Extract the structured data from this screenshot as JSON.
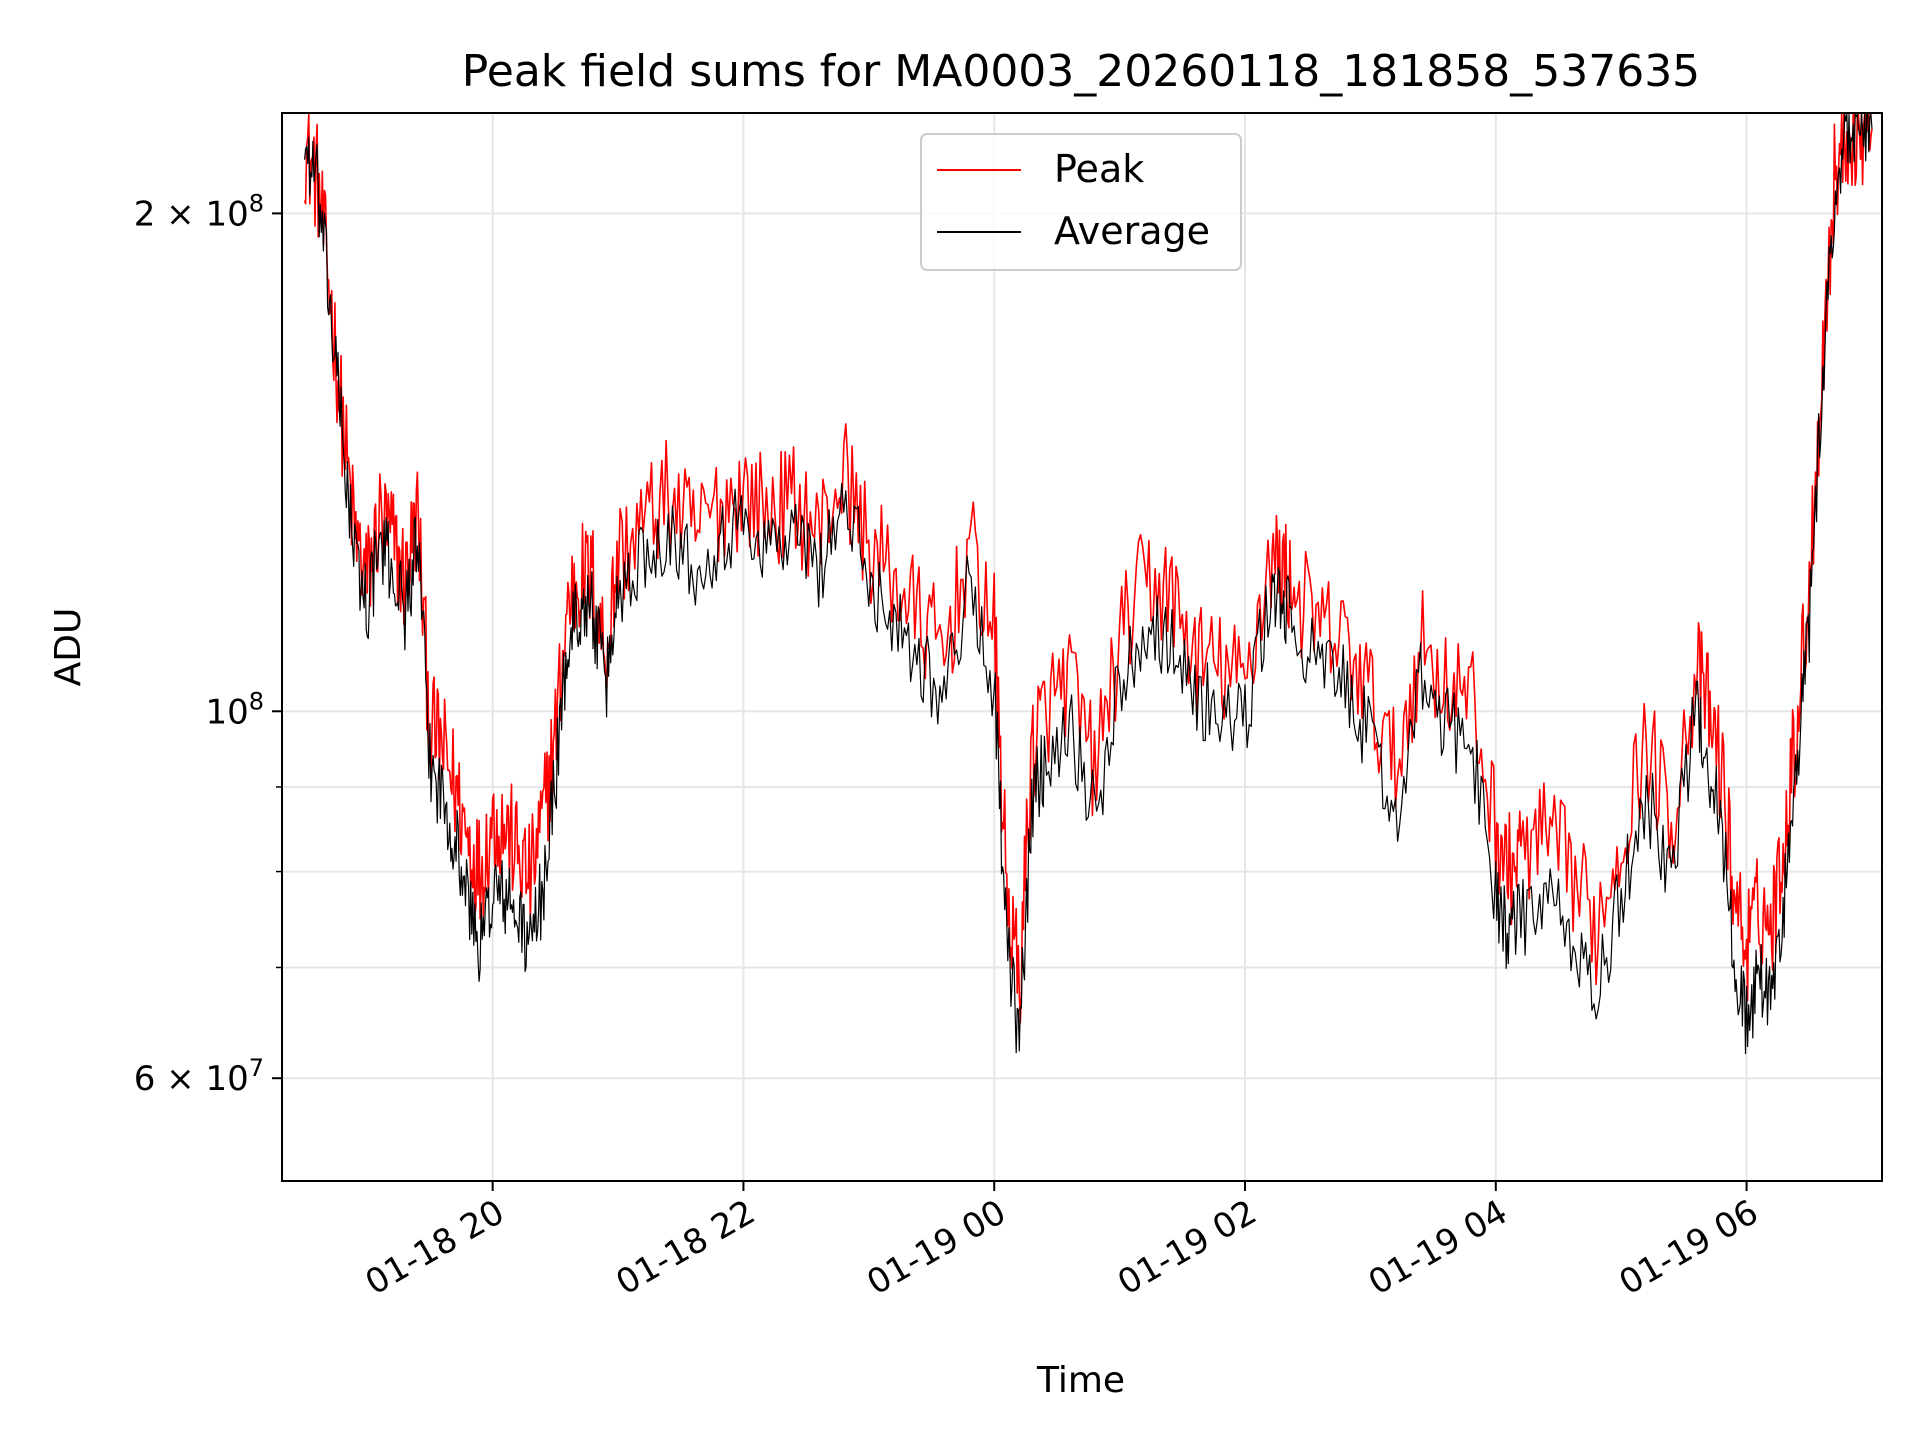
{
  "chart_data": {
    "type": "line",
    "title": "Peak field sums for MA0003_20260118_181858_537635",
    "xlabel": "Time",
    "ylabel": "ADU",
    "yscale": "log",
    "grid": true,
    "legend_position": "top-center",
    "xlim_hours": [
      18.32,
      31.08
    ],
    "ylim": [
      52000000,
      230000000
    ],
    "x_ticks": [
      {
        "hours": 20,
        "label": "01-18 20"
      },
      {
        "hours": 22,
        "label": "01-18 22"
      },
      {
        "hours": 24,
        "label": "01-19 00"
      },
      {
        "hours": 26,
        "label": "01-19 02"
      },
      {
        "hours": 28,
        "label": "01-19 04"
      },
      {
        "hours": 30,
        "label": "01-19 06"
      }
    ],
    "y_ticks_major": [
      {
        "value": 60000000,
        "label": "6 × 10⁷",
        "mantissa": "6",
        "base": "10",
        "exp": "7"
      },
      {
        "value": 100000000,
        "label": "10⁸",
        "mantissa": "",
        "base": "10",
        "exp": "8"
      },
      {
        "value": 200000000,
        "label": "2 × 10⁸",
        "mantissa": "2",
        "base": "10",
        "exp": "8"
      }
    ],
    "y_ticks_minor": [
      70000000,
      80000000,
      90000000
    ],
    "series": [
      {
        "name": "Peak",
        "color": "#ff0000",
        "x": [
          18.5,
          18.6,
          18.7,
          18.8,
          18.9,
          19.0,
          19.1,
          19.2,
          19.3,
          19.4,
          19.5,
          19.6,
          19.7,
          19.8,
          19.9,
          20.0,
          20.1,
          20.2,
          20.3,
          20.4,
          20.5,
          20.6,
          20.7,
          20.8,
          20.9,
          21.0,
          21.2,
          21.4,
          21.6,
          21.8,
          22.0,
          22.2,
          22.4,
          22.6,
          22.8,
          23.0,
          23.2,
          23.4,
          23.6,
          23.8,
          24.0,
          24.1,
          24.2,
          24.3,
          24.4,
          24.6,
          24.8,
          25.0,
          25.2,
          25.4,
          25.6,
          25.8,
          26.0,
          26.2,
          26.3,
          26.4,
          26.6,
          26.8,
          27.0,
          27.2,
          27.4,
          27.6,
          27.8,
          28.0,
          28.1,
          28.2,
          28.4,
          28.6,
          28.8,
          29.0,
          29.2,
          29.4,
          29.6,
          29.7,
          29.8,
          29.9,
          30.0,
          30.1,
          30.2,
          30.3,
          30.4,
          30.5,
          30.6,
          30.7,
          30.8,
          30.9,
          31.0
        ],
        "values": [
          220000000,
          210000000,
          180000000,
          150000000,
          128000000,
          120000000,
          131000000,
          127000000,
          120000000,
          132000000,
          98000000,
          95000000,
          90000000,
          84000000,
          80000000,
          86000000,
          85000000,
          82000000,
          79000000,
          86000000,
          97000000,
          116000000,
          121000000,
          120000000,
          108000000,
          124000000,
          130000000,
          135000000,
          128000000,
          133000000,
          136000000,
          132000000,
          134000000,
          128000000,
          140000000,
          126000000,
          120000000,
          114000000,
          108000000,
          126000000,
          112000000,
          78000000,
          68000000,
          95000000,
          100000000,
          105000000,
          92000000,
          110000000,
          120000000,
          118000000,
          108000000,
          106000000,
          104000000,
          124000000,
          122000000,
          118000000,
          112000000,
          110000000,
          102000000,
          92000000,
          110000000,
          104000000,
          102000000,
          85000000,
          80000000,
          82000000,
          84000000,
          80000000,
          74000000,
          84000000,
          96000000,
          86000000,
          106000000,
          100000000,
          92000000,
          78000000,
          72000000,
          76000000,
          74000000,
          84000000,
          98000000,
          120000000,
          160000000,
          210000000,
          225000000,
          225000000,
          225000000
        ]
      },
      {
        "name": "Average",
        "color": "#000000",
        "x": [
          18.5,
          18.6,
          18.7,
          18.8,
          18.9,
          19.0,
          19.1,
          19.2,
          19.3,
          19.4,
          19.5,
          19.6,
          19.7,
          19.8,
          19.9,
          20.0,
          20.1,
          20.2,
          20.3,
          20.4,
          20.5,
          20.6,
          20.7,
          20.8,
          20.9,
          21.0,
          21.2,
          21.4,
          21.6,
          21.8,
          22.0,
          22.2,
          22.4,
          22.6,
          22.8,
          23.0,
          23.2,
          23.4,
          23.6,
          23.8,
          24.0,
          24.1,
          24.2,
          24.3,
          24.4,
          24.6,
          24.8,
          25.0,
          25.2,
          25.4,
          25.6,
          25.8,
          26.0,
          26.2,
          26.3,
          26.4,
          26.6,
          26.8,
          27.0,
          27.2,
          27.4,
          27.6,
          27.8,
          28.0,
          28.1,
          28.2,
          28.4,
          28.6,
          28.8,
          29.0,
          29.2,
          29.4,
          29.6,
          29.7,
          29.8,
          29.9,
          30.0,
          30.1,
          30.2,
          30.3,
          30.4,
          30.5,
          30.6,
          30.7,
          30.8,
          30.9,
          31.0
        ],
        "values": [
          220000000,
          208000000,
          177000000,
          147000000,
          124000000,
          116000000,
          126000000,
          122000000,
          115000000,
          127000000,
          93000000,
          89000000,
          84000000,
          77000000,
          72000000,
          78000000,
          77000000,
          75000000,
          72000000,
          78000000,
          91000000,
          110000000,
          116000000,
          115000000,
          103000000,
          118000000,
          124000000,
          129000000,
          122000000,
          127000000,
          130000000,
          126000000,
          128000000,
          122000000,
          134000000,
          120000000,
          114000000,
          108000000,
          102000000,
          119000000,
          104000000,
          72000000,
          63000000,
          88000000,
          93000000,
          99000000,
          86000000,
          104000000,
          113000000,
          111000000,
          102000000,
          100000000,
          98000000,
          118000000,
          116000000,
          112000000,
          106000000,
          104000000,
          96000000,
          86000000,
          104000000,
          98000000,
          96000000,
          78000000,
          73000000,
          75000000,
          77000000,
          73000000,
          67000000,
          77000000,
          89000000,
          80000000,
          100000000,
          93000000,
          85000000,
          71000000,
          65000000,
          69000000,
          67000000,
          77000000,
          92000000,
          113000000,
          155000000,
          205000000,
          225000000,
          225000000,
          225000000
        ]
      }
    ]
  }
}
